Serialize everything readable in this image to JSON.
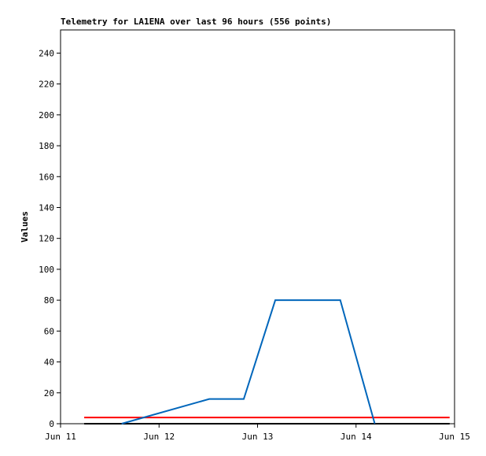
{
  "chart_data": {
    "type": "line",
    "title": "Telemetry for LA1ENA over last 96 hours (556 points)",
    "y_label": "Values",
    "xlim": [
      11,
      15
    ],
    "xticks": [
      {
        "value": 11,
        "label": "Jun 11"
      },
      {
        "value": 12,
        "label": "Jun 12"
      },
      {
        "value": 13,
        "label": "Jun 13"
      },
      {
        "value": 14,
        "label": "Jun 14"
      },
      {
        "value": 15,
        "label": "Jun 15"
      }
    ],
    "ylim": [
      0,
      255
    ],
    "yticks": [
      0,
      20,
      40,
      60,
      80,
      100,
      120,
      140,
      160,
      180,
      200,
      220,
      240
    ],
    "series": [
      {
        "color": "#000000",
        "x": [
          11.24,
          14.95
        ],
        "values": [
          0,
          0
        ]
      },
      {
        "color": "#ff0000",
        "x": [
          11.24,
          14.95
        ],
        "values": [
          4,
          4
        ]
      },
      {
        "color": "#0066bb",
        "x": [
          11.62,
          12.51,
          12.86,
          13.18,
          13.84,
          14.19
        ],
        "values": [
          0,
          16,
          16,
          80,
          80,
          0
        ]
      }
    ]
  }
}
